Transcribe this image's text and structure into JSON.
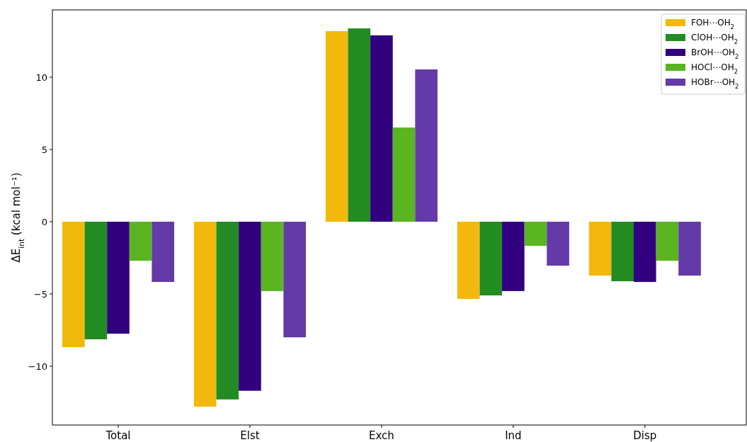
{
  "chart_data": {
    "type": "bar",
    "categories": [
      "Total",
      "Elst",
      "Exch",
      "Ind",
      "Disp"
    ],
    "ylabel": "ΔE$_{int}$ (kcal mol⁻¹)",
    "ylim": [
      -14.07,
      14.66
    ],
    "yticks": [
      {
        "value": -10,
        "label": "−10"
      },
      {
        "value": -5,
        "label": "−5"
      },
      0,
      5,
      10
    ],
    "legend": "top right",
    "series": [
      {
        "name": "FOH⋯OH$_{2}$",
        "color": "#f2b90c",
        "values": [
          -8.68,
          -12.8,
          13.19,
          -5.34,
          -3.73
        ]
      },
      {
        "name": "ClOH⋯OH$_{2}$",
        "color": "#228b22",
        "values": [
          -8.14,
          -12.3,
          13.38,
          -5.1,
          -4.12
        ]
      },
      {
        "name": "BrOH⋯OH$_{2}$",
        "color": "#31007f",
        "values": [
          -7.75,
          -11.7,
          12.9,
          -4.8,
          -4.17
        ]
      },
      {
        "name": "HOCl⋯OH$_{2}$",
        "color": "#5ab520",
        "values": [
          -2.7,
          -4.8,
          6.52,
          -1.67,
          -2.7
        ]
      },
      {
        "name": "HOBr⋯OH$_{2}$",
        "color": "#6439a8",
        "values": [
          -4.17,
          -8.0,
          10.54,
          -3.04,
          -3.73
        ]
      }
    ]
  }
}
